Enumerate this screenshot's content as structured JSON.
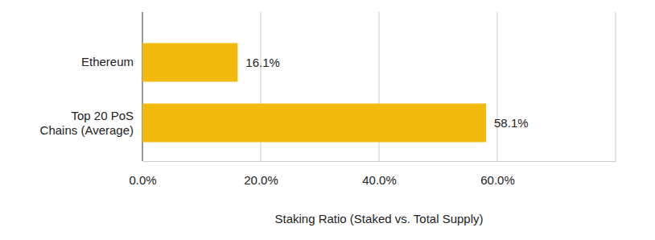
{
  "chart_data": {
    "type": "bar",
    "orientation": "horizontal",
    "categories": [
      "Ethereum",
      "Top 20 PoS Chains (Average)"
    ],
    "values": [
      16.1,
      58.1
    ],
    "value_labels": [
      "16.1%",
      "58.1%"
    ],
    "data_labels": true,
    "color": "#f2b90f",
    "x_label": "Staking Ratio (Staked vs. Total Supply)",
    "xlim": [
      0,
      80
    ],
    "xticks": [
      {
        "value": 0,
        "label": "0.0%"
      },
      {
        "value": 20,
        "label": "20.0%"
      },
      {
        "value": 40,
        "label": "40.0%"
      },
      {
        "value": 60,
        "label": "60.0%"
      }
    ],
    "grid": true
  }
}
